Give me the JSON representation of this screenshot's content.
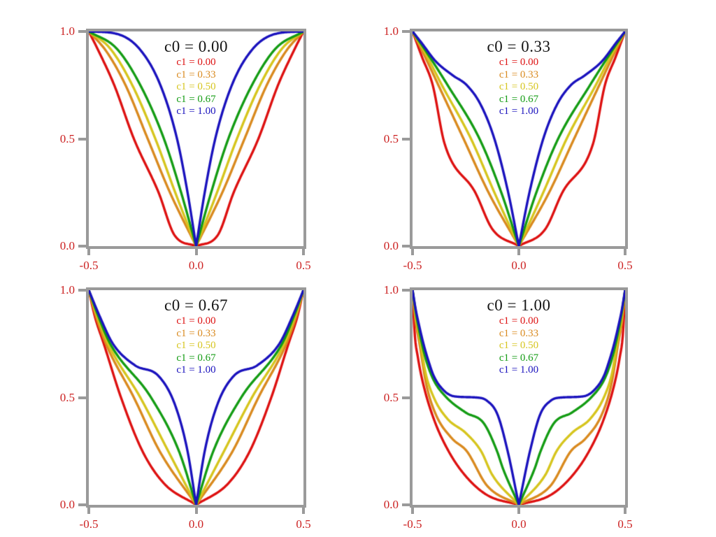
{
  "figure": {
    "background": "#ffffff",
    "frame_color": "#9a9a9a",
    "tick_label_color": "#cc2222",
    "title_color": "#141414"
  },
  "chart_data": {
    "type": "line",
    "x_range": [
      -0.5,
      0.5
    ],
    "y_range": [
      0.0,
      1.0
    ],
    "x_tick_labels": [
      "-0.5",
      "0.0",
      "0.5"
    ],
    "y_tick_labels": [
      "1.0",
      "0.5",
      "0.0"
    ],
    "grid": false,
    "legend_position": "top-center-inside",
    "description": "Curves f(x) symmetric in x, f(0)=0, f(±0.5)=1; points_uf give [u,f] with u=|2x|",
    "panels": [
      {
        "c0": 0.0,
        "title": "c0 = 0.00",
        "series": [
          {
            "label": "c1 = 0.00",
            "c1": 0.0,
            "color": "#dd1111",
            "points_uf": [
              [
                0,
                0
              ],
              [
                0.2,
                0.05
              ],
              [
                0.35,
                0.25
              ],
              [
                0.58,
                0.5
              ],
              [
                0.763,
                0.75
              ],
              [
                0.9,
                0.9
              ],
              [
                1,
                1
              ]
            ]
          },
          {
            "label": "c1 = 0.33",
            "c1": 0.33,
            "color": "#d98a1f",
            "points_uf": [
              [
                0,
                0
              ],
              [
                0.244,
                0.25
              ],
              [
                0.451,
                0.5
              ],
              [
                0.658,
                0.75
              ],
              [
                0.84,
                0.91
              ],
              [
                1,
                1
              ]
            ]
          },
          {
            "label": "c1 = 0.50",
            "c1": 0.5,
            "color": "#d6c51e",
            "points_uf": [
              [
                0,
                0
              ],
              [
                0.195,
                0.25
              ],
              [
                0.38,
                0.5
              ],
              [
                0.595,
                0.75
              ],
              [
                0.8,
                0.92
              ],
              [
                1,
                1
              ]
            ]
          },
          {
            "label": "c1 = 0.67",
            "c1": 0.67,
            "color": "#149c14",
            "points_uf": [
              [
                0,
                0
              ],
              [
                0.14,
                0.25
              ],
              [
                0.3,
                0.5
              ],
              [
                0.52,
                0.75
              ],
              [
                0.74,
                0.92
              ],
              [
                1,
                1
              ]
            ]
          },
          {
            "label": "c1 = 1.00",
            "c1": 1.0,
            "color": "#1a12bd",
            "points_uf": [
              [
                0,
                0
              ],
              [
                0.08,
                0.25
              ],
              [
                0.178,
                0.5
              ],
              [
                0.333,
                0.75
              ],
              [
                0.53,
                0.92
              ],
              [
                0.75,
                0.99
              ],
              [
                1,
                1
              ]
            ]
          }
        ]
      },
      {
        "c0": 0.33,
        "title": "c0 = 0.33",
        "series": [
          {
            "label": "c1 = 0.00",
            "c1": 0.0,
            "color": "#dd1111",
            "points_uf": [
              [
                0,
                0
              ],
              [
                0.25,
                0.08
              ],
              [
                0.41,
                0.25
              ],
              [
                0.7,
                0.48
              ],
              [
                0.81,
                0.75
              ],
              [
                0.91,
                0.88
              ],
              [
                1,
                1
              ]
            ]
          },
          {
            "label": "c1 = 0.33",
            "c1": 0.33,
            "color": "#d98a1f",
            "points_uf": [
              [
                0,
                0
              ],
              [
                0.285,
                0.25
              ],
              [
                0.52,
                0.5
              ],
              [
                0.757,
                0.75
              ],
              [
                0.89,
                0.89
              ],
              [
                1,
                1
              ]
            ]
          },
          {
            "label": "c1 = 0.50",
            "c1": 0.5,
            "color": "#d6c51e",
            "points_uf": [
              [
                0,
                0
              ],
              [
                0.23,
                0.25
              ],
              [
                0.45,
                0.5
              ],
              [
                0.724,
                0.75
              ],
              [
                0.87,
                0.89
              ],
              [
                1,
                1
              ]
            ]
          },
          {
            "label": "c1 = 0.67",
            "c1": 0.67,
            "color": "#149c14",
            "points_uf": [
              [
                0,
                0
              ],
              [
                0.165,
                0.25
              ],
              [
                0.37,
                0.5
              ],
              [
                0.67,
                0.75
              ],
              [
                0.85,
                0.89
              ],
              [
                1,
                1
              ]
            ]
          },
          {
            "label": "c1 = 1.00",
            "c1": 1.0,
            "color": "#1a12bd",
            "points_uf": [
              [
                0,
                0
              ],
              [
                0.1,
                0.25
              ],
              [
                0.23,
                0.5
              ],
              [
                0.36,
                0.66
              ],
              [
                0.49,
                0.75
              ],
              [
                0.62,
                0.795
              ],
              [
                0.78,
                0.86
              ],
              [
                0.92,
                0.95
              ],
              [
                1,
                1
              ]
            ]
          }
        ]
      },
      {
        "c0": 0.67,
        "title": "c0 = 0.67",
        "series": [
          {
            "label": "c1 = 0.00",
            "c1": 0.0,
            "color": "#dd1111",
            "points_uf": [
              [
                0,
                0
              ],
              [
                0.3,
                0.1
              ],
              [
                0.5,
                0.25
              ],
              [
                0.7,
                0.5
              ],
              [
                0.86,
                0.75
              ],
              [
                0.945,
                0.88
              ],
              [
                1,
                1
              ]
            ]
          },
          {
            "label": "c1 = 0.33",
            "c1": 0.33,
            "color": "#d98a1f",
            "points_uf": [
              [
                0,
                0
              ],
              [
                0.34,
                0.25
              ],
              [
                0.58,
                0.5
              ],
              [
                0.84,
                0.75
              ],
              [
                0.94,
                0.89
              ],
              [
                1,
                1
              ]
            ]
          },
          {
            "label": "c1 = 0.50",
            "c1": 0.5,
            "color": "#d6c51e",
            "points_uf": [
              [
                0,
                0
              ],
              [
                0.26,
                0.25
              ],
              [
                0.52,
                0.5
              ],
              [
                0.82,
                0.75
              ],
              [
                0.93,
                0.89
              ],
              [
                1,
                1
              ]
            ]
          },
          {
            "label": "c1 = 0.67",
            "c1": 0.67,
            "color": "#149c14",
            "points_uf": [
              [
                0,
                0
              ],
              [
                0.16,
                0.25
              ],
              [
                0.42,
                0.5
              ],
              [
                0.8,
                0.75
              ],
              [
                0.92,
                0.89
              ],
              [
                1,
                1
              ]
            ]
          },
          {
            "label": "c1 = 1.00",
            "c1": 1.0,
            "color": "#1a12bd",
            "points_uf": [
              [
                0,
                0
              ],
              [
                0.08,
                0.25
              ],
              [
                0.2,
                0.47
              ],
              [
                0.35,
                0.6
              ],
              [
                0.57,
                0.65
              ],
              [
                0.775,
                0.75
              ],
              [
                0.9,
                0.88
              ],
              [
                1,
                1
              ]
            ]
          }
        ]
      },
      {
        "c0": 1.0,
        "title": "c0 = 1.00",
        "series": [
          {
            "label": "c1 = 0.00",
            "c1": 0.0,
            "color": "#dd1111",
            "points_uf": [
              [
                0,
                0
              ],
              [
                0.3,
                0.046
              ],
              [
                0.5,
                0.134
              ],
              [
                0.661,
                0.25
              ],
              [
                0.8,
                0.4
              ],
              [
                0.9,
                0.564
              ],
              [
                0.95,
                0.688
              ],
              [
                0.98,
                0.8
              ],
              [
                1,
                1
              ]
            ]
          },
          {
            "label": "c1 = 0.33",
            "c1": 0.33,
            "color": "#d98a1f",
            "points_uf": [
              [
                0,
                0
              ],
              [
                0.3,
                0.09
              ],
              [
                0.49,
                0.25
              ],
              [
                0.63,
                0.31
              ],
              [
                0.78,
                0.42
              ],
              [
                0.87,
                0.56
              ],
              [
                0.934,
                0.75
              ],
              [
                0.975,
                0.87
              ],
              [
                1,
                1
              ]
            ]
          },
          {
            "label": "c1 = 0.50",
            "c1": 0.5,
            "color": "#d6c51e",
            "points_uf": [
              [
                0,
                0
              ],
              [
                0.25,
                0.14
              ],
              [
                0.355,
                0.25
              ],
              [
                0.5,
                0.335
              ],
              [
                0.67,
                0.4
              ],
              [
                0.8,
                0.5
              ],
              [
                0.88,
                0.62
              ],
              [
                0.923,
                0.75
              ],
              [
                0.97,
                0.88
              ],
              [
                1,
                1
              ]
            ]
          },
          {
            "label": "c1 = 0.67",
            "c1": 0.67,
            "color": "#149c14",
            "points_uf": [
              [
                0,
                0
              ],
              [
                0.15,
                0.17
              ],
              [
                0.205,
                0.25
              ],
              [
                0.33,
                0.38
              ],
              [
                0.5,
                0.43
              ],
              [
                0.68,
                0.5
              ],
              [
                0.8,
                0.58
              ],
              [
                0.87,
                0.67
              ],
              [
                0.911,
                0.75
              ],
              [
                0.96,
                0.87
              ],
              [
                1,
                1
              ]
            ]
          },
          {
            "label": "c1 = 1.00",
            "c1": 1.0,
            "color": "#1a12bd",
            "points_uf": [
              [
                0,
                0
              ],
              [
                0.105,
                0.25
              ],
              [
                0.2,
                0.42
              ],
              [
                0.3,
                0.485
              ],
              [
                0.4,
                0.5
              ],
              [
                0.6,
                0.505
              ],
              [
                0.7,
                0.53
              ],
              [
                0.8,
                0.6
              ],
              [
                0.85,
                0.67
              ],
              [
                0.897,
                0.75
              ],
              [
                0.94,
                0.84
              ],
              [
                0.97,
                0.91
              ],
              [
                1,
                1
              ]
            ]
          }
        ]
      }
    ]
  }
}
